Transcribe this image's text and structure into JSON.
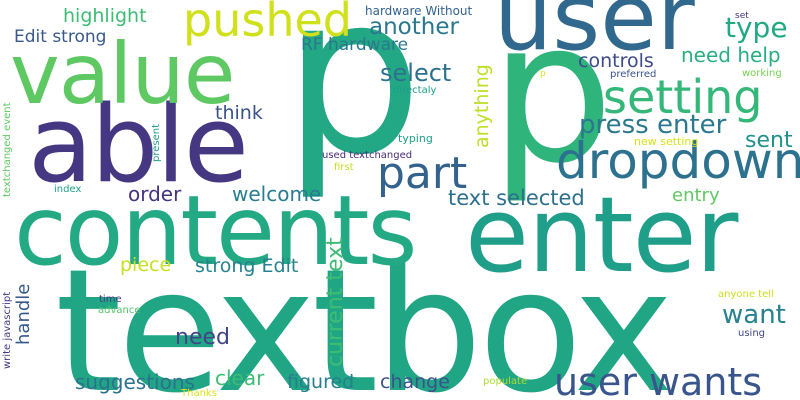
{
  "cloud": {
    "words": [
      {
        "text": "textbox",
        "color": "#21a685"
      },
      {
        "text": "p",
        "color": "#22a884"
      },
      {
        "text": "p",
        "color": "#2fb47c"
      },
      {
        "text": "enter",
        "color": "#1f9e89"
      },
      {
        "text": "contents",
        "color": "#23a983"
      },
      {
        "text": "user",
        "color": "#31688e"
      },
      {
        "text": "able",
        "color": "#453781"
      },
      {
        "text": "value",
        "color": "#5ec962"
      },
      {
        "text": "dropdown",
        "color": "#2c728e"
      },
      {
        "text": "pushed",
        "color": "#d0e11c"
      },
      {
        "text": "setting",
        "color": "#35b779"
      },
      {
        "text": "part",
        "color": "#33638d"
      },
      {
        "text": "user wants",
        "color": "#39568c"
      },
      {
        "text": "press enter",
        "color": "#2a788e"
      },
      {
        "text": "text selected",
        "color": "#2d708e"
      },
      {
        "text": "select",
        "color": "#2d718e"
      },
      {
        "text": "another",
        "color": "#2a788e"
      },
      {
        "text": "type",
        "color": "#22a884"
      },
      {
        "text": "need help",
        "color": "#29af7f"
      },
      {
        "text": "sent",
        "color": "#21918c"
      },
      {
        "text": "current text",
        "color": "#3fbc73"
      },
      {
        "text": "anything",
        "color": "#bddf26"
      },
      {
        "text": "want",
        "color": "#26828e"
      },
      {
        "text": "welcome",
        "color": "#287d8e"
      },
      {
        "text": "order",
        "color": "#46337f"
      },
      {
        "text": "highlight",
        "color": "#3dbc74"
      },
      {
        "text": "controls",
        "color": "#3e4a89"
      },
      {
        "text": "think",
        "color": "#3b528b"
      },
      {
        "text": "entry",
        "color": "#5ec962"
      },
      {
        "text": "suggestions",
        "color": "#2c728e"
      },
      {
        "text": "clear",
        "color": "#3dbc74"
      },
      {
        "text": "figured",
        "color": "#277f8e"
      },
      {
        "text": "change",
        "color": "#3b518b"
      },
      {
        "text": "need",
        "color": "#414487"
      },
      {
        "text": "piece",
        "color": "#c8e020"
      },
      {
        "text": "strong Edit",
        "color": "#26828e"
      },
      {
        "text": "handle",
        "color": "#38598c"
      },
      {
        "text": "Edit strong",
        "color": "#38598c"
      },
      {
        "text": "RF hardware",
        "color": "#2a788e"
      },
      {
        "text": "hardware Without",
        "color": "#33638d"
      },
      {
        "text": "used textchanged",
        "color": "#472c7a"
      },
      {
        "text": "new setting",
        "color": "#d5e21a"
      },
      {
        "text": "typing",
        "color": "#1fa088"
      },
      {
        "text": "directaly",
        "color": "#1f9e89"
      },
      {
        "text": "present",
        "color": "#1f9e89"
      },
      {
        "text": "first",
        "color": "#c2df23"
      },
      {
        "text": "index",
        "color": "#20a386"
      },
      {
        "text": "textchanged event",
        "color": "#5ec962"
      },
      {
        "text": "write javascript",
        "color": "#443983"
      },
      {
        "text": "time",
        "color": "#443983"
      },
      {
        "text": "advance",
        "color": "#52c569"
      },
      {
        "text": "anyone tell",
        "color": "#cde11d"
      },
      {
        "text": "using",
        "color": "#404688"
      },
      {
        "text": "populate",
        "color": "#addc30"
      },
      {
        "text": "Thanks",
        "color": "#d8e219"
      },
      {
        "text": "set",
        "color": "#46307e"
      },
      {
        "text": "preferred",
        "color": "#3b528b"
      },
      {
        "text": "working",
        "color": "#75d054"
      },
      {
        "text": "p",
        "color": "#d8e219"
      }
    ]
  }
}
